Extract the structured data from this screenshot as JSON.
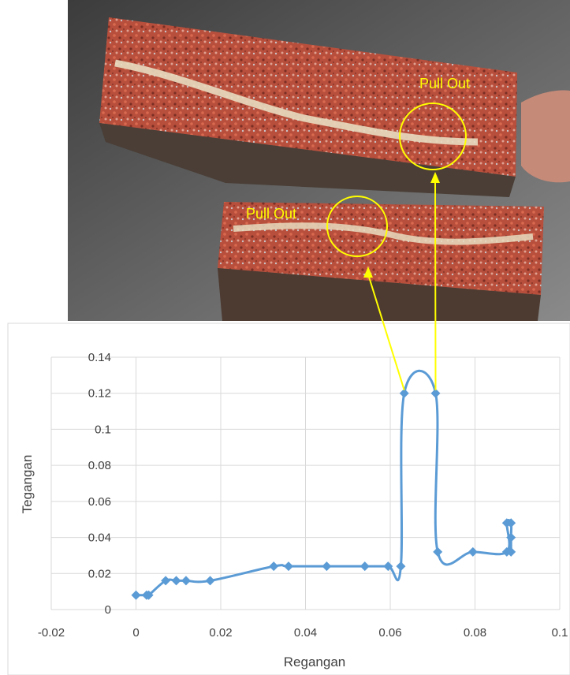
{
  "photo": {
    "annotations": [
      "Pull Out",
      "Pull Out"
    ]
  },
  "chart_data": {
    "type": "scatter",
    "xlabel": "Regangan",
    "ylabel": "Tegangan",
    "xlim": [
      -0.02,
      0.1
    ],
    "ylim": [
      0,
      0.14
    ],
    "xticks": [
      "-0.02",
      "0",
      "0.02",
      "0.04",
      "0.06",
      "0.08",
      "0.1"
    ],
    "yticks": [
      "0",
      "0.02",
      "0.04",
      "0.06",
      "0.08",
      "0.1",
      "0.12",
      "0.14"
    ],
    "grid": true,
    "line_style": "smoothed",
    "color": "#5b9bd5",
    "series": [
      {
        "points": [
          [
            0.0,
            0.008
          ],
          [
            0.0025,
            0.008
          ],
          [
            0.003,
            0.008
          ],
          [
            0.007,
            0.016
          ],
          [
            0.0095,
            0.016
          ],
          [
            0.0118,
            0.016
          ],
          [
            0.0175,
            0.016
          ],
          [
            0.0325,
            0.024
          ],
          [
            0.036,
            0.024
          ],
          [
            0.045,
            0.024
          ],
          [
            0.054,
            0.024
          ],
          [
            0.0595,
            0.024
          ],
          [
            0.0625,
            0.024
          ],
          [
            0.0633,
            0.12
          ],
          [
            0.0707,
            0.12
          ],
          [
            0.0712,
            0.032
          ],
          [
            0.0795,
            0.032
          ],
          [
            0.0875,
            0.032
          ],
          [
            0.0875,
            0.048
          ],
          [
            0.0885,
            0.048
          ],
          [
            0.0885,
            0.04
          ],
          [
            0.0885,
            0.032
          ]
        ]
      }
    ],
    "highlighted_points_for_photo_arrows": [
      [
        0.0633,
        0.12
      ],
      [
        0.0707,
        0.12
      ]
    ]
  }
}
